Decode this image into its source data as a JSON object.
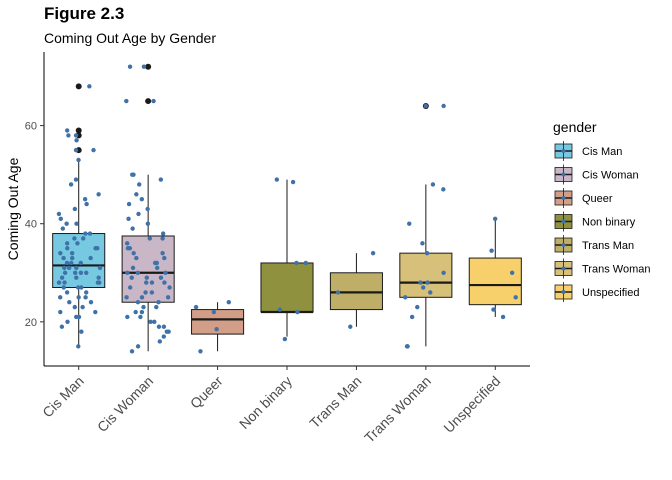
{
  "figure": {
    "title": "Figure 2.3",
    "subtitle": "Coming Out Age by Gender"
  },
  "chart_data": {
    "type": "box",
    "title": "Figure 2.3",
    "subtitle": "Coming Out Age by Gender",
    "xlabel": "",
    "ylabel": "Coming Out Age",
    "ylim": [
      11,
      75
    ],
    "yticks": [
      20,
      40,
      60
    ],
    "grid": false,
    "legend": {
      "title": "gender",
      "position": "right"
    },
    "point_color": "#3f72a8",
    "outlier_color": "#1a1a1a",
    "categories": [
      "Cis Man",
      "Cis Woman",
      "Queer",
      "Non binary",
      "Trans Man",
      "Trans Woman",
      "Unspecified"
    ],
    "series": [
      {
        "name": "Cis Man",
        "color": "#76c9e0",
        "box": {
          "min": 15,
          "q1": 27,
          "median": 31.5,
          "q3": 38,
          "max": 53
        },
        "outliers": [
          55,
          58,
          59,
          68
        ],
        "points": [
          15,
          18,
          19,
          20,
          21,
          21,
          22,
          22,
          23,
          23,
          24,
          24,
          25,
          25,
          25,
          26,
          26,
          27,
          27,
          27,
          28,
          28,
          28,
          28,
          29,
          29,
          29,
          30,
          30,
          30,
          30,
          31,
          31,
          31,
          31,
          32,
          32,
          32,
          33,
          33,
          33,
          34,
          34,
          35,
          35,
          35,
          36,
          36,
          37,
          37,
          38,
          38,
          39,
          40,
          40,
          41,
          42,
          43,
          44,
          45,
          46,
          48,
          49,
          53,
          55,
          55,
          57,
          58,
          58,
          59,
          68
        ]
      },
      {
        "name": "Cis Woman",
        "color": "#c9b6c6",
        "box": {
          "min": 14,
          "q1": 24,
          "median": 30,
          "q3": 37.5,
          "max": 50
        },
        "outliers": [
          65,
          72
        ],
        "points": [
          14,
          15,
          16,
          17,
          18,
          18,
          19,
          19,
          20,
          20,
          21,
          21,
          22,
          22,
          23,
          23,
          24,
          24,
          25,
          25,
          25,
          26,
          26,
          27,
          27,
          28,
          28,
          28,
          29,
          29,
          29,
          30,
          30,
          30,
          31,
          31,
          32,
          32,
          33,
          33,
          34,
          34,
          35,
          35,
          36,
          37,
          37,
          38,
          39,
          40,
          41,
          42,
          43,
          44,
          45,
          46,
          48,
          49,
          50,
          50,
          65,
          65,
          72,
          72
        ]
      },
      {
        "name": "Queer",
        "color": "#d29e88",
        "box": {
          "min": 14,
          "q1": 17.5,
          "median": 20.5,
          "q3": 22.5,
          "max": 24
        },
        "outliers": [],
        "points": [
          14,
          18.5,
          22,
          23,
          24
        ]
      },
      {
        "name": "Non binary",
        "color": "#8f913f",
        "box": {
          "min": 17,
          "q1": 22,
          "median": 22,
          "q3": 32,
          "max": 49
        },
        "outliers": [],
        "points": [
          16.5,
          22,
          22.5,
          32,
          32,
          48.5,
          49
        ]
      },
      {
        "name": "Trans Man",
        "color": "#bfae67",
        "box": {
          "min": 19,
          "q1": 22.5,
          "median": 26,
          "q3": 30,
          "max": 34
        },
        "outliers": [],
        "points": [
          19,
          26,
          34
        ]
      },
      {
        "name": "Trans Woman",
        "color": "#d6c07a",
        "box": {
          "min": 15,
          "q1": 25,
          "median": 28,
          "q3": 34,
          "max": 48
        },
        "outliers": [
          64
        ],
        "points": [
          15,
          15,
          21,
          23,
          25,
          26,
          27,
          28,
          28,
          30,
          34,
          36,
          40,
          47,
          48,
          64,
          64
        ]
      },
      {
        "name": "Unspecified",
        "color": "#f8d06b",
        "box": {
          "min": 21,
          "q1": 23.5,
          "median": 27.5,
          "q3": 33,
          "max": 41
        },
        "outliers": [],
        "points": [
          21,
          22.5,
          25,
          30,
          34.5,
          41
        ]
      }
    ]
  }
}
